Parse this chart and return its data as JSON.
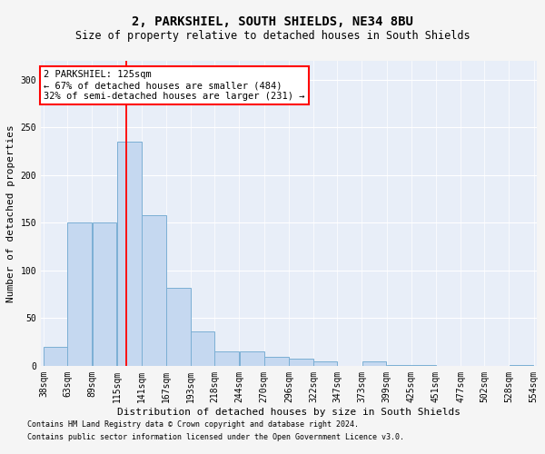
{
  "title": "2, PARKSHIEL, SOUTH SHIELDS, NE34 8BU",
  "subtitle": "Size of property relative to detached houses in South Shields",
  "xlabel": "Distribution of detached houses by size in South Shields",
  "ylabel": "Number of detached properties",
  "bar_color": "#c5d8f0",
  "bar_edge_color": "#7bafd4",
  "background_color": "#e8eef8",
  "grid_color": "#ffffff",
  "fig_background": "#f5f5f5",
  "red_line_x": 125,
  "annotation_text": "2 PARKSHIEL: 125sqm\n← 67% of detached houses are smaller (484)\n32% of semi-detached houses are larger (231) →",
  "footnote1": "Contains HM Land Registry data © Crown copyright and database right 2024.",
  "footnote2": "Contains public sector information licensed under the Open Government Licence v3.0.",
  "bin_edges": [
    38,
    63,
    89,
    115,
    141,
    167,
    193,
    218,
    244,
    270,
    296,
    322,
    347,
    373,
    399,
    425,
    451,
    477,
    502,
    528,
    554
  ],
  "bar_heights": [
    20,
    150,
    150,
    235,
    158,
    82,
    36,
    15,
    15,
    9,
    8,
    5,
    0,
    5,
    1,
    1,
    0,
    0,
    0,
    1
  ],
  "ylim": [
    0,
    320
  ],
  "yticks": [
    0,
    50,
    100,
    150,
    200,
    250,
    300
  ],
  "title_fontsize": 10,
  "subtitle_fontsize": 8.5,
  "axis_label_fontsize": 8,
  "tick_fontsize": 7,
  "annotation_fontsize": 7.5,
  "footnote_fontsize": 6
}
